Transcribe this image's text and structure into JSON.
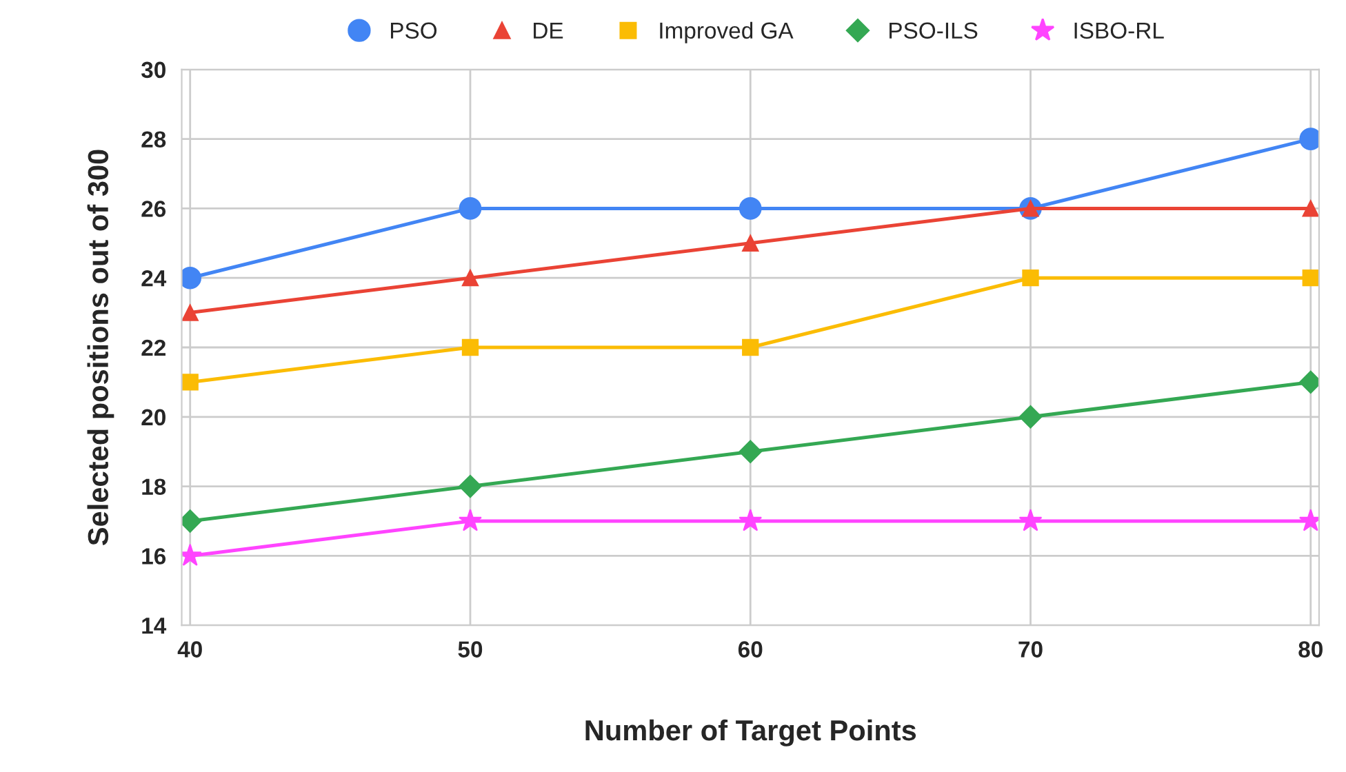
{
  "chart_data": {
    "type": "line",
    "xlabel": "Number of Target Points",
    "ylabel": "Selected positions out of 300",
    "x": [
      40,
      50,
      60,
      70,
      80
    ],
    "series": [
      {
        "name": "PSO",
        "color": "#4285f4",
        "marker": "circle",
        "values": [
          24,
          26,
          26,
          26,
          28
        ]
      },
      {
        "name": "DE",
        "color": "#ea4335",
        "marker": "triangle",
        "values": [
          23,
          24,
          25,
          26,
          26
        ]
      },
      {
        "name": "Improved GA",
        "color": "#fbbc04",
        "marker": "square",
        "values": [
          21,
          22,
          22,
          24,
          24
        ]
      },
      {
        "name": "PSO-ILS",
        "color": "#34a853",
        "marker": "diamond",
        "values": [
          17,
          18,
          19,
          20,
          21
        ]
      },
      {
        "name": "ISBO-RL",
        "color": "#ff44ff",
        "marker": "star",
        "values": [
          16,
          17,
          17,
          17,
          17
        ]
      }
    ],
    "xlim": [
      39.7,
      80.3
    ],
    "xticks": [
      40,
      50,
      60,
      70,
      80
    ],
    "ylim": [
      14,
      30
    ],
    "yticks": [
      14,
      16,
      18,
      20,
      22,
      24,
      26,
      28,
      30
    ],
    "grid": true,
    "legend": "top",
    "line_style": "solid"
  }
}
